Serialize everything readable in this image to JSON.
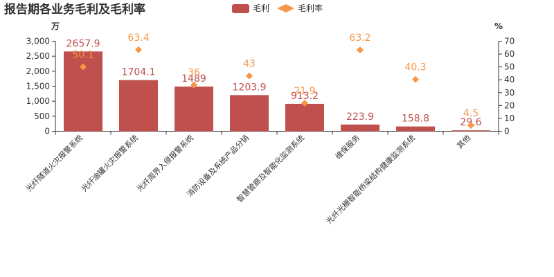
{
  "chart_data": {
    "type": "bar",
    "title": "报告期各业务毛利及毛利率",
    "categories": [
      "光纤隧道火灾报警系统",
      "光纤油罐火灾报警系统",
      "光纤周界入侵报警系统",
      "消防设备及系统产品分销",
      "智慧管廊及智能化监测系统",
      "维保服务",
      "光纤光栅智能桥梁结构健康监测系统",
      "其他"
    ],
    "series": [
      {
        "name": "毛利",
        "type": "bar",
        "axis": "left",
        "color": "#c0504d",
        "values": [
          2657.9,
          1704.1,
          1489,
          1203.9,
          913.2,
          223.9,
          158.8,
          29.6
        ]
      },
      {
        "name": "毛利率",
        "type": "scatter",
        "axis": "right",
        "color": "#f79646",
        "values": [
          50.1,
          63.4,
          36,
          43,
          21.9,
          63.2,
          40.3,
          4.5
        ]
      }
    ],
    "y_left": {
      "unit": "万",
      "ylim": [
        0,
        3000
      ],
      "ticks": [
        0,
        500,
        1000,
        1500,
        2000,
        2500,
        3000
      ]
    },
    "y_right": {
      "unit": "%",
      "ylim": [
        0,
        70
      ],
      "ticks": [
        0,
        10,
        20,
        30,
        40,
        50,
        60,
        70
      ]
    },
    "legend_position": "top-center",
    "grid": false
  }
}
